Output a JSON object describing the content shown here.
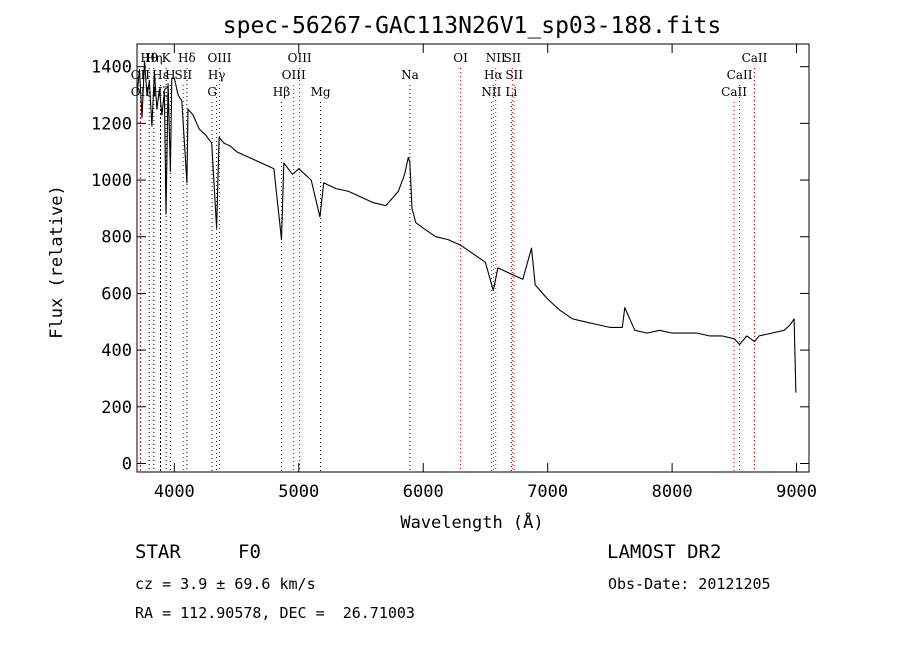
{
  "chart_data": {
    "type": "line",
    "title": "spec-56267-GAC113N26V1_sp03-188.fits",
    "xlabel": "Wavelength (Å)",
    "ylabel": "Flux (relative)",
    "xlim": [
      3700,
      9100
    ],
    "ylim": [
      -30,
      1480
    ],
    "x_ticks": [
      4000,
      5000,
      6000,
      7000,
      8000,
      9000
    ],
    "x_tick_labels": [
      "4000",
      "5000",
      "6000",
      "7000",
      "8000",
      "9000"
    ],
    "y_ticks": [
      0,
      200,
      400,
      600,
      800,
      1000,
      1200,
      1400
    ],
    "y_tick_labels": [
      "0",
      "200",
      "400",
      "600",
      "800",
      "1000",
      "1200",
      "1400"
    ],
    "grid": false,
    "series": [
      {
        "color": "#000000",
        "x": [
          3700,
          3720,
          3740,
          3760,
          3780,
          3800,
          3820,
          3840,
          3860,
          3880,
          3900,
          3920,
          3933,
          3950,
          3968,
          3980,
          4000,
          4030,
          4060,
          4101,
          4110,
          4150,
          4200,
          4250,
          4300,
          4340,
          4360,
          4400,
          4450,
          4500,
          4600,
          4700,
          4800,
          4861,
          4880,
          4950,
          5000,
          5100,
          5170,
          5200,
          5300,
          5400,
          5500,
          5600,
          5700,
          5800,
          5850,
          5880,
          5893,
          5910,
          5940,
          6000,
          6100,
          6200,
          6300,
          6400,
          6500,
          6563,
          6600,
          6700,
          6800,
          6870,
          6900,
          7000,
          7100,
          7200,
          7300,
          7400,
          7500,
          7600,
          7620,
          7700,
          7800,
          7900,
          8000,
          8100,
          8200,
          8300,
          8400,
          8500,
          8542,
          8600,
          8662,
          8700,
          8800,
          8900,
          8950,
          8980,
          8995
        ],
        "y": [
          1300,
          1390,
          1220,
          1420,
          1300,
          1350,
          1190,
          1380,
          1250,
          1320,
          1230,
          1310,
          880,
          1340,
          1030,
          1360,
          1360,
          1300,
          1280,
          990,
          1250,
          1230,
          1180,
          1160,
          1130,
          830,
          1150,
          1130,
          1120,
          1100,
          1080,
          1060,
          1040,
          790,
          1060,
          1020,
          1040,
          1000,
          870,
          990,
          970,
          960,
          940,
          920,
          910,
          960,
          1020,
          1080,
          1060,
          900,
          850,
          830,
          800,
          790,
          770,
          740,
          710,
          610,
          690,
          670,
          650,
          760,
          630,
          580,
          540,
          510,
          500,
          490,
          480,
          480,
          550,
          470,
          460,
          470,
          460,
          460,
          460,
          450,
          450,
          440,
          420,
          450,
          430,
          450,
          460,
          470,
          490,
          510,
          250
        ]
      }
    ],
    "line_markers": [
      {
        "label": "Hθ",
        "x": 3798,
        "row": 0,
        "color": "#000000"
      },
      {
        "label": "Hη",
        "x": 3835,
        "row": 0,
        "color": "#000000"
      },
      {
        "label": "K",
        "x": 3934,
        "row": 0,
        "color": "#000000"
      },
      {
        "label": "Hδ",
        "x": 4101,
        "row": 0,
        "color": "#000000"
      },
      {
        "label": "OIII",
        "x": 4363,
        "row": 0,
        "color": "#000000"
      },
      {
        "label": "OIII",
        "x": 5007,
        "row": 0,
        "color": "#000000"
      },
      {
        "label": "OI",
        "x": 6300,
        "row": 0,
        "color": "#000000"
      },
      {
        "label": "NII",
        "x": 6583,
        "row": 0,
        "color": "#000000"
      },
      {
        "label": "SII",
        "x": 6716,
        "row": 0,
        "color": "#000000"
      },
      {
        "label": "CaII",
        "x": 8662,
        "row": 0,
        "color": "#000000"
      },
      {
        "label": "OII",
        "x": 3727,
        "row": 1,
        "color": "#000000"
      },
      {
        "label": "Hε",
        "x": 3889,
        "row": 1,
        "color": "#000000"
      },
      {
        "label": "H",
        "x": 3968,
        "row": 1,
        "color": "#000000"
      },
      {
        "label": "SII",
        "x": 4072,
        "row": 1,
        "color": "#000000"
      },
      {
        "label": "Hγ",
        "x": 4340,
        "row": 1,
        "color": "#000000"
      },
      {
        "label": "OIII",
        "x": 4959,
        "row": 1,
        "color": "#000000"
      },
      {
        "label": "Na",
        "x": 5893,
        "row": 1,
        "color": "#000000"
      },
      {
        "label": "Hα",
        "x": 6563,
        "row": 1,
        "color": "#000000"
      },
      {
        "label": "SII",
        "x": 6731,
        "row": 1,
        "color": "#000000"
      },
      {
        "label": "CaII",
        "x": 8542,
        "row": 1,
        "color": "#000000"
      },
      {
        "label": "OII",
        "x": 3727,
        "row": 2,
        "color": "#000000"
      },
      {
        "label": "Hζ",
        "x": 3889,
        "row": 2,
        "color": "#000000"
      },
      {
        "label": "G",
        "x": 4304,
        "row": 2,
        "color": "#000000"
      },
      {
        "label": "Hβ",
        "x": 4861,
        "row": 2,
        "color": "#000000"
      },
      {
        "label": "Mg",
        "x": 5175,
        "row": 2,
        "color": "#000000"
      },
      {
        "label": "NII",
        "x": 6548,
        "row": 2,
        "color": "#000000"
      },
      {
        "label": "Li",
        "x": 6708,
        "row": 2,
        "color": "#000000"
      },
      {
        "label": "CaII",
        "x": 8498,
        "row": 2,
        "color": "#000000"
      }
    ],
    "marker_colors": {
      "emission": "#cc0000",
      "absorption": "#000000"
    }
  },
  "info": {
    "object_class": "STAR",
    "subclass": "F0",
    "survey": "LAMOST DR2",
    "redshift": "cz = 3.9 ± 69.6 km/s",
    "obs_date": "Obs-Date: 20121205",
    "coords": "RA = 112.90578, DEC =  26.71003"
  }
}
